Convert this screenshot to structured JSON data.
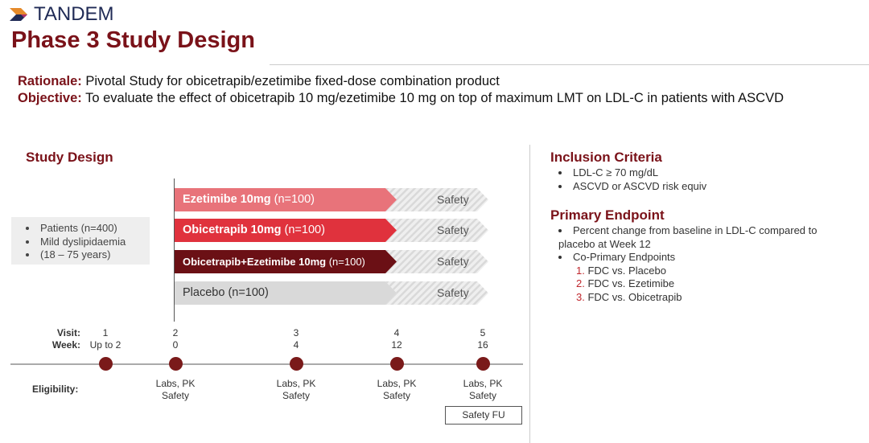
{
  "logo": "TANDEM",
  "title": "Phase 3 Study Design",
  "rationale": {
    "label": "Rationale:",
    "text": "Pivotal Study for obicetrapib/ezetimibe fixed-dose combination product"
  },
  "objective": {
    "label": "Objective:",
    "text": "To evaluate the effect of obicetrapib 10 mg/ezetimibe 10 mg on top of maximum LMT on LDL-C in patients with ASCVD"
  },
  "study_design": {
    "heading": "Study Design",
    "patients": [
      "Patients (n=400)",
      "Mild dyslipidaemia",
      "(18 – 75 years)"
    ],
    "arms": [
      {
        "name": "Ezetimibe 10mg",
        "n": "(n=100)",
        "color": "#e8737a",
        "safety": "Safety"
      },
      {
        "name": "Obicetrapib 10mg",
        "n": "(n=100)",
        "color": "#e0323d",
        "safety": "Safety"
      },
      {
        "name": "Obicetrapib+Ezetimibe 10mg",
        "n": "(n=100)",
        "color": "#6b1015",
        "safety": "Safety"
      },
      {
        "name": "Placebo",
        "n": "(n=100)",
        "color": "#d9d9d9",
        "safety": "Safety"
      }
    ]
  },
  "timeline": {
    "visit_label": "Visit:",
    "week_label": "Week:",
    "eligibility_label": "Eligibility:",
    "visits": [
      {
        "visit": "1",
        "week": "Up to 2",
        "labs": "",
        "safety": ""
      },
      {
        "visit": "2",
        "week": "0",
        "labs": "Labs, PK",
        "safety": "Safety"
      },
      {
        "visit": "3",
        "week": "4",
        "labs": "Labs, PK",
        "safety": "Safety"
      },
      {
        "visit": "4",
        "week": "12",
        "labs": "Labs, PK",
        "safety": "Safety"
      },
      {
        "visit": "5",
        "week": "16",
        "labs": "Labs, PK",
        "safety": "Safety"
      }
    ],
    "safety_fu": "Safety FU"
  },
  "inclusion": {
    "heading": "Inclusion Criteria",
    "items": [
      "LDL-C ≥ 70 mg/dL",
      "ASCVD or ASCVD risk equiv"
    ]
  },
  "endpoint": {
    "heading": "Primary Endpoint",
    "items": [
      "Percent change from baseline in LDL-C compared to placebo at Week 12",
      "Co-Primary Endpoints"
    ],
    "sub": [
      "FDC vs. Placebo",
      "FDC vs. Ezetimibe",
      "FDC vs. Obicetrapib"
    ]
  }
}
